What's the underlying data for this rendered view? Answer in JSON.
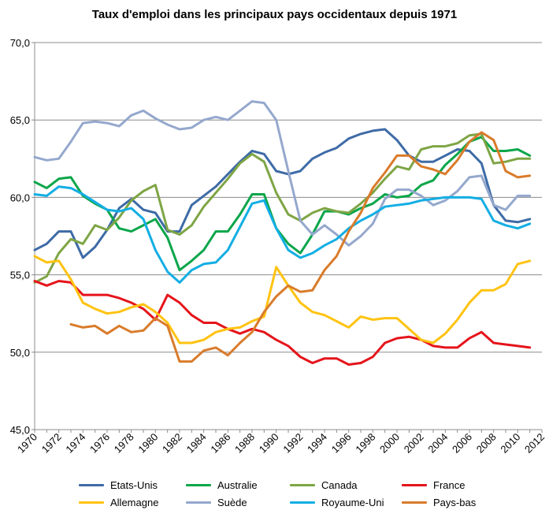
{
  "chart_data": {
    "type": "line",
    "title": "Taux d'emploi dans les principaux pays occidentaux depuis 1971",
    "xlabel": "",
    "ylabel": "",
    "ylim": [
      45,
      70
    ],
    "xlim": [
      1970,
      2012
    ],
    "y_ticks": [
      "45,0",
      "50,0",
      "55,0",
      "60,0",
      "65,0",
      "70,0"
    ],
    "y_tick_values": [
      45,
      50,
      55,
      60,
      65,
      70
    ],
    "x_ticks": [
      "1970",
      "1972",
      "1974",
      "1976",
      "1978",
      "1980",
      "1982",
      "1984",
      "1986",
      "1988",
      "1990",
      "1992",
      "1994",
      "1996",
      "1998",
      "2000",
      "2002",
      "2004",
      "2006",
      "2008",
      "2010",
      "2012"
    ],
    "x_tick_values": [
      1970,
      1972,
      1974,
      1976,
      1978,
      1980,
      1982,
      1984,
      1986,
      1988,
      1990,
      1992,
      1994,
      1996,
      1998,
      2000,
      2002,
      2004,
      2006,
      2008,
      2010,
      2012
    ],
    "grid": "horizontal",
    "legend_position": "bottom",
    "series": [
      {
        "name": "Etats-Unis",
        "color": "#3E6BA6",
        "x_start": 1970,
        "values": [
          56.6,
          57.0,
          57.8,
          57.8,
          56.1,
          56.8,
          57.9,
          59.3,
          59.9,
          59.2,
          59.0,
          57.8,
          57.8,
          59.5,
          60.1,
          60.7,
          61.5,
          62.3,
          63.0,
          62.8,
          61.7,
          61.5,
          61.7,
          62.5,
          62.9,
          63.2,
          63.8,
          64.1,
          64.3,
          64.4,
          63.7,
          62.7,
          62.3,
          62.3,
          62.7,
          63.1,
          63.0,
          62.2,
          59.5,
          58.5,
          58.4,
          58.6
        ]
      },
      {
        "name": "Australie",
        "color": "#0BA64A",
        "x_start": 1970,
        "values": [
          61.0,
          60.6,
          61.2,
          61.3,
          60.1,
          59.6,
          59.2,
          58.0,
          57.8,
          58.2,
          58.6,
          57.4,
          55.3,
          55.9,
          56.6,
          57.8,
          57.8,
          58.9,
          60.2,
          60.2,
          58.0,
          57.0,
          56.4,
          57.6,
          59.1,
          59.1,
          58.9,
          59.3,
          59.6,
          60.2,
          60.0,
          60.1,
          60.8,
          61.1,
          62.1,
          62.8,
          63.6,
          63.9,
          63.0,
          63.0,
          63.1,
          62.7
        ]
      },
      {
        "name": "Canada",
        "color": "#7EA545",
        "x_start": 1970,
        "values": [
          54.5,
          54.9,
          56.4,
          57.3,
          57.0,
          58.2,
          57.9,
          58.7,
          59.8,
          60.4,
          60.8,
          57.9,
          57.6,
          58.2,
          59.4,
          60.3,
          61.2,
          62.2,
          62.8,
          62.3,
          60.3,
          58.9,
          58.5,
          59.0,
          59.3,
          59.1,
          59.0,
          59.6,
          60.3,
          61.2,
          62.0,
          61.8,
          63.1,
          63.3,
          63.3,
          63.5,
          64.0,
          64.1,
          62.2,
          62.3,
          62.5,
          62.5
        ]
      },
      {
        "name": "France",
        "color": "#E5141B",
        "x_start": 1970,
        "values": [
          54.6,
          54.3,
          54.6,
          54.5,
          53.7,
          53.7,
          53.7,
          53.5,
          53.2,
          52.8,
          52.1,
          53.7,
          53.2,
          52.4,
          51.9,
          51.9,
          51.5,
          51.2,
          51.5,
          51.3,
          50.8,
          50.4,
          49.7,
          49.3,
          49.6,
          49.6,
          49.2,
          49.3,
          49.7,
          50.6,
          50.9,
          51.0,
          50.8,
          50.4,
          50.3,
          50.3,
          50.9,
          51.3,
          50.6,
          50.5,
          50.4,
          50.3
        ]
      },
      {
        "name": "Allemagne",
        "color": "#FFC312",
        "x_start": 1970,
        "values": [
          56.2,
          55.8,
          55.9,
          54.7,
          53.2,
          52.8,
          52.5,
          52.6,
          52.9,
          53.1,
          52.6,
          51.9,
          50.6,
          50.6,
          50.8,
          51.3,
          51.5,
          51.6,
          52.0,
          52.3,
          55.5,
          54.3,
          53.2,
          52.6,
          52.4,
          52.0,
          51.6,
          52.3,
          52.1,
          52.2,
          52.2,
          51.5,
          50.8,
          50.6,
          51.2,
          52.1,
          53.2,
          54.0,
          54.0,
          54.4,
          55.7,
          55.9
        ]
      },
      {
        "name": "Suède",
        "color": "#95A8CD",
        "x_start": 1970,
        "values": [
          62.6,
          62.4,
          62.5,
          63.6,
          64.8,
          64.9,
          64.8,
          64.6,
          65.3,
          65.6,
          65.1,
          64.7,
          64.4,
          64.5,
          65.0,
          65.2,
          65.0,
          65.6,
          66.2,
          66.1,
          65.0,
          61.7,
          58.5,
          57.6,
          58.2,
          57.6,
          56.9,
          57.5,
          58.3,
          59.9,
          60.5,
          60.5,
          60.1,
          59.5,
          59.8,
          60.4,
          61.3,
          61.4,
          59.5,
          59.2,
          60.1,
          60.1
        ]
      },
      {
        "name": "Royaume-Uni",
        "color": "#13AEE4",
        "x_start": 1970,
        "values": [
          60.2,
          60.1,
          60.7,
          60.6,
          60.2,
          59.7,
          59.2,
          59.1,
          59.3,
          58.6,
          56.6,
          55.2,
          54.5,
          55.3,
          55.7,
          55.8,
          56.6,
          58.1,
          59.6,
          59.8,
          58.0,
          56.6,
          56.1,
          56.4,
          56.9,
          57.3,
          58.0,
          58.5,
          58.9,
          59.4,
          59.5,
          59.6,
          59.8,
          59.9,
          60.0,
          60.0,
          60.0,
          59.9,
          58.5,
          58.2,
          58.0,
          58.3
        ]
      },
      {
        "name": "Pays-bas",
        "color": "#D97B2B",
        "x_start": 1973,
        "values": [
          51.8,
          51.6,
          51.7,
          51.2,
          51.7,
          51.3,
          51.4,
          52.2,
          51.7,
          49.4,
          49.4,
          50.1,
          50.3,
          49.8,
          50.6,
          51.3,
          52.6,
          53.6,
          54.3,
          53.9,
          54.0,
          55.3,
          56.2,
          57.8,
          59.0,
          60.6,
          61.6,
          62.7,
          62.7,
          62.0,
          61.8,
          61.5,
          62.4,
          63.6,
          64.2,
          63.7,
          61.7,
          61.3,
          61.4
        ]
      }
    ]
  }
}
